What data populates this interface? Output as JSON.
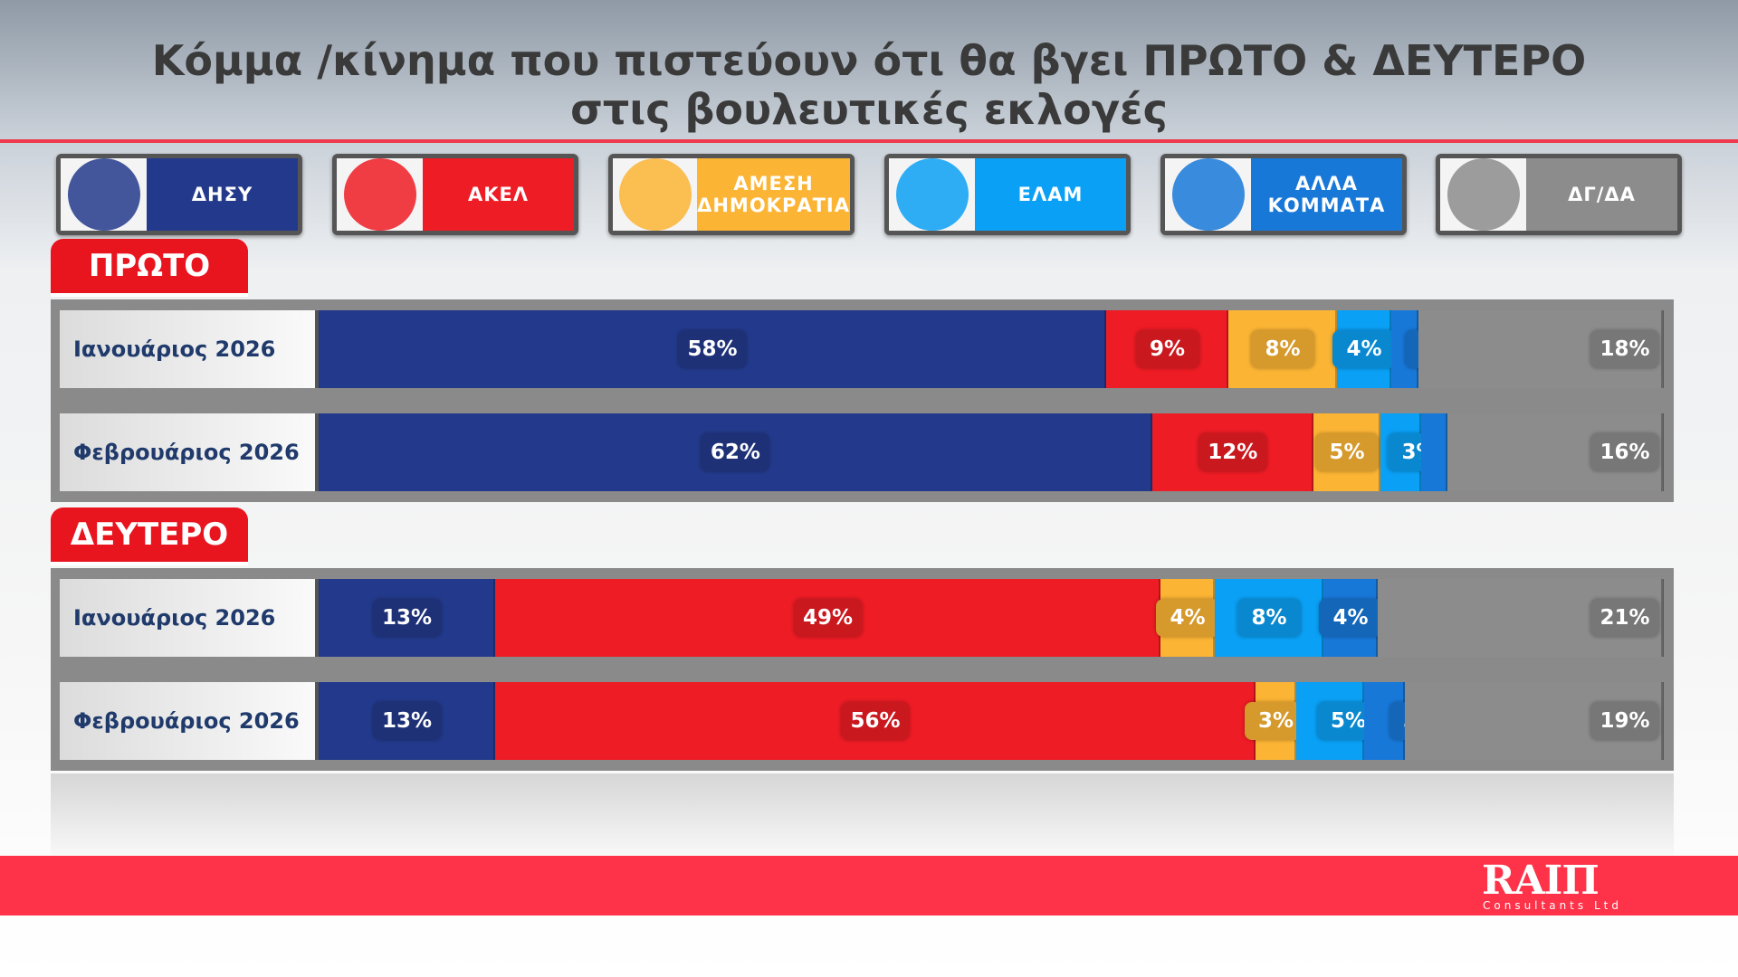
{
  "title": {
    "line1": "Κόμμα /κίνημα που πιστεύουν ότι θα βγει ΠΡΩΤΟ & ΔΕΥΤΕΡΟ",
    "line2": "στις βουλευτικές εκλογές"
  },
  "legend": [
    {
      "name": "ΔΗΣΥ",
      "color": "#233a8c"
    },
    {
      "name": "ΑΚΕΛ",
      "color": "#ee1c25"
    },
    {
      "name": "ΑΜΕΣΗ ΔΗΜΟΚΡΑΤΙΑ",
      "color": "#fbb434"
    },
    {
      "name": "ΕΛΑΜ",
      "color": "#0aa0f5"
    },
    {
      "name": "ΑΛΛΑ ΚΟΜΜΑΤΑ",
      "color": "#1878d8"
    },
    {
      "name": "ΔΓ/ΔΑ",
      "color": "#8c8c8c"
    }
  ],
  "footer": {
    "brand": "RAIΠ",
    "sub": "Consultants Ltd"
  },
  "chart_data": [
    {
      "type": "bar",
      "stacked": true,
      "orientation": "horizontal",
      "title": "ΠΡΩΤΟ",
      "unit": "%",
      "categories": [
        "Ιανουάριος 2026",
        "Φεβρουάριος 2026"
      ],
      "series": [
        {
          "name": "ΔΗΣΥ",
          "values": [
            58,
            62
          ]
        },
        {
          "name": "ΑΚΕΛ",
          "values": [
            9,
            12
          ]
        },
        {
          "name": "ΑΜΕΣΗ ΔΗΜΟΚΡΑΤΙΑ",
          "values": [
            8,
            5
          ]
        },
        {
          "name": "ΕΛΑΜ",
          "values": [
            4,
            3
          ]
        },
        {
          "name": "ΑΛΛΑ ΚΟΜΜΑΤΑ",
          "values": [
            2,
            2
          ]
        },
        {
          "name": "ΔΓ/ΔΑ",
          "values": [
            18,
            16
          ]
        }
      ]
    },
    {
      "type": "bar",
      "stacked": true,
      "orientation": "horizontal",
      "title": "ΔΕΥΤΕΡΟ",
      "unit": "%",
      "categories": [
        "Ιανουάριος 2026",
        "Φεβρουάριος 2026"
      ],
      "series": [
        {
          "name": "ΔΗΣΥ",
          "values": [
            13,
            13
          ]
        },
        {
          "name": "ΑΚΕΛ",
          "values": [
            49,
            56
          ]
        },
        {
          "name": "ΑΜΕΣΗ ΔΗΜΟΚΡΑΤΙΑ",
          "values": [
            4,
            3
          ]
        },
        {
          "name": "ΕΛΑΜ",
          "values": [
            8,
            5
          ]
        },
        {
          "name": "ΑΛΛΑ ΚΟΜΜΑΤΑ",
          "values": [
            4,
            3
          ]
        },
        {
          "name": "ΔΓ/ΔΑ",
          "values": [
            21,
            19
          ]
        }
      ]
    }
  ]
}
